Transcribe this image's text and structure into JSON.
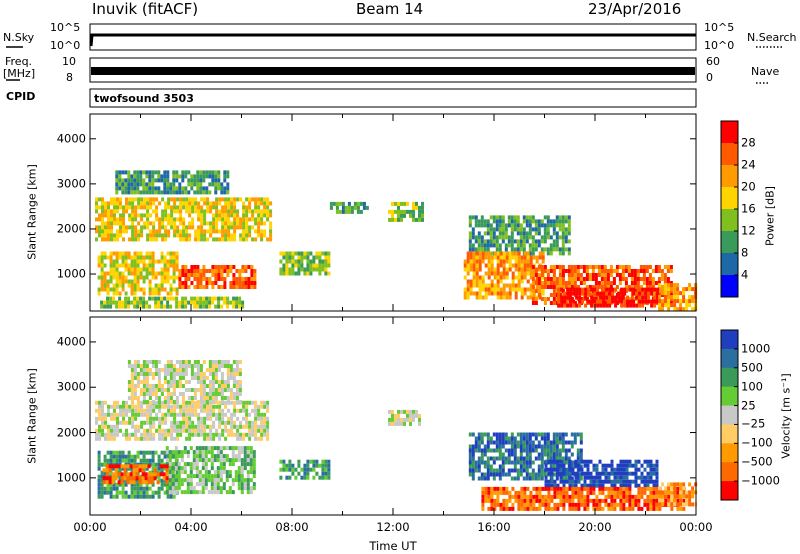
{
  "header": {
    "station": "Inuvik (fitACF)",
    "beam": "Beam 14",
    "date": "23/Apr/2016"
  },
  "params_panels": {
    "nsky_label": "N.Sky",
    "nsearch_label": "N.Search",
    "nsky_ticks": [
      "10^5",
      "10^0"
    ],
    "nsearch_ticks": [
      "10^5",
      "10^0"
    ],
    "freq_label_line1": "Freq.",
    "freq_label_line2": "[MHz]",
    "freq_ticks": [
      "10",
      "8"
    ],
    "nave_label": "Nave",
    "nave_ticks": [
      "60",
      "0"
    ],
    "cpid_label": "CPID",
    "cpid_value": "twofsound 3503"
  },
  "chart_data": [
    {
      "type": "heatmap",
      "panel": "power",
      "xlabel": "",
      "ylabel": "Slant Range [km]",
      "y_ticks": [
        1000,
        2000,
        3000,
        4000
      ],
      "ylim": [
        180,
        4550
      ],
      "colorbar": {
        "label": "Power [dB]",
        "ticks": [
          "28",
          "24",
          "20",
          "16",
          "12",
          "8",
          "4"
        ],
        "colors": [
          "#ff0000",
          "#ff5a00",
          "#ff9a00",
          "#ffd400",
          "#7fc020",
          "#3a9a5a",
          "#1f68a6",
          "#0000ff"
        ]
      },
      "regions": [
        {
          "t0": 0.2,
          "t1": 7.2,
          "r0": 1800,
          "r1": 2700,
          "level": 3
        },
        {
          "t0": 1.0,
          "t1": 5.5,
          "r0": 2800,
          "r1": 3300,
          "level": 5
        },
        {
          "t0": 0.3,
          "t1": 3.5,
          "r0": 600,
          "r1": 1500,
          "level": 3
        },
        {
          "t0": 3.5,
          "t1": 6.5,
          "r0": 700,
          "r1": 1200,
          "level": 1
        },
        {
          "t0": 0.4,
          "t1": 6.0,
          "r0": 250,
          "r1": 500,
          "level": 4
        },
        {
          "t0": 7.5,
          "t1": 9.5,
          "r0": 1000,
          "r1": 1500,
          "level": 4
        },
        {
          "t0": 9.5,
          "t1": 11.0,
          "r0": 2400,
          "r1": 2600,
          "level": 5
        },
        {
          "t0": 11.8,
          "t1": 13.2,
          "r0": 2200,
          "r1": 2600,
          "level": 4
        },
        {
          "t0": 15.0,
          "t1": 19.0,
          "r0": 1500,
          "r1": 2300,
          "level": 5
        },
        {
          "t0": 14.8,
          "t1": 18.0,
          "r0": 500,
          "r1": 1500,
          "level": 2
        },
        {
          "t0": 17.5,
          "t1": 23.0,
          "r0": 400,
          "r1": 1200,
          "level": 1
        },
        {
          "t0": 18.5,
          "t1": 22.5,
          "r0": 300,
          "r1": 700,
          "level": 0
        },
        {
          "t0": 22.5,
          "t1": 24.0,
          "r0": 200,
          "r1": 800,
          "level": 2
        }
      ]
    },
    {
      "type": "heatmap",
      "panel": "velocity",
      "xlabel": "Time UT",
      "ylabel": "Slant Range [km]",
      "x_ticks": [
        "00:00",
        "04:00",
        "08:00",
        "12:00",
        "16:00",
        "20:00",
        "00:00"
      ],
      "y_ticks": [
        1000,
        2000,
        3000,
        4000
      ],
      "ylim": [
        180,
        4550
      ],
      "colorbar": {
        "label": "Velocity [m s⁻¹]",
        "ticks": [
          "1000",
          "500",
          "100",
          "25",
          "−25",
          "−100",
          "−500",
          "−1000"
        ],
        "colors": [
          "#1f3fbf",
          "#2a6fa0",
          "#3a9a5a",
          "#66cc33",
          "#c8c8c8",
          "#ffcc66",
          "#ff9a00",
          "#ff6a00",
          "#ff0000"
        ]
      },
      "regions": [
        {
          "t0": 0.2,
          "t1": 7.0,
          "r0": 1900,
          "r1": 2700,
          "level": 4
        },
        {
          "t0": 1.5,
          "t1": 6.0,
          "r0": 2700,
          "r1": 3600,
          "level": 4
        },
        {
          "t0": 0.3,
          "t1": 3.5,
          "r0": 600,
          "r1": 1600,
          "level": 2
        },
        {
          "t0": 3.0,
          "t1": 6.5,
          "r0": 700,
          "r1": 1700,
          "level": 3
        },
        {
          "t0": 0.5,
          "t1": 3.0,
          "r0": 900,
          "r1": 1300,
          "level": 7
        },
        {
          "t0": 7.5,
          "t1": 9.5,
          "r0": 1000,
          "r1": 1400,
          "level": 2
        },
        {
          "t0": 11.8,
          "t1": 13.0,
          "r0": 2200,
          "r1": 2500,
          "level": 4
        },
        {
          "t0": 15.0,
          "t1": 19.5,
          "r0": 1000,
          "r1": 2000,
          "level": 1
        },
        {
          "t0": 18.0,
          "t1": 22.5,
          "r0": 800,
          "r1": 1400,
          "level": 0
        },
        {
          "t0": 15.5,
          "t1": 23.5,
          "r0": 300,
          "r1": 800,
          "level": 7
        },
        {
          "t0": 22.5,
          "t1": 24.0,
          "r0": 400,
          "r1": 900,
          "level": 6
        }
      ]
    }
  ]
}
